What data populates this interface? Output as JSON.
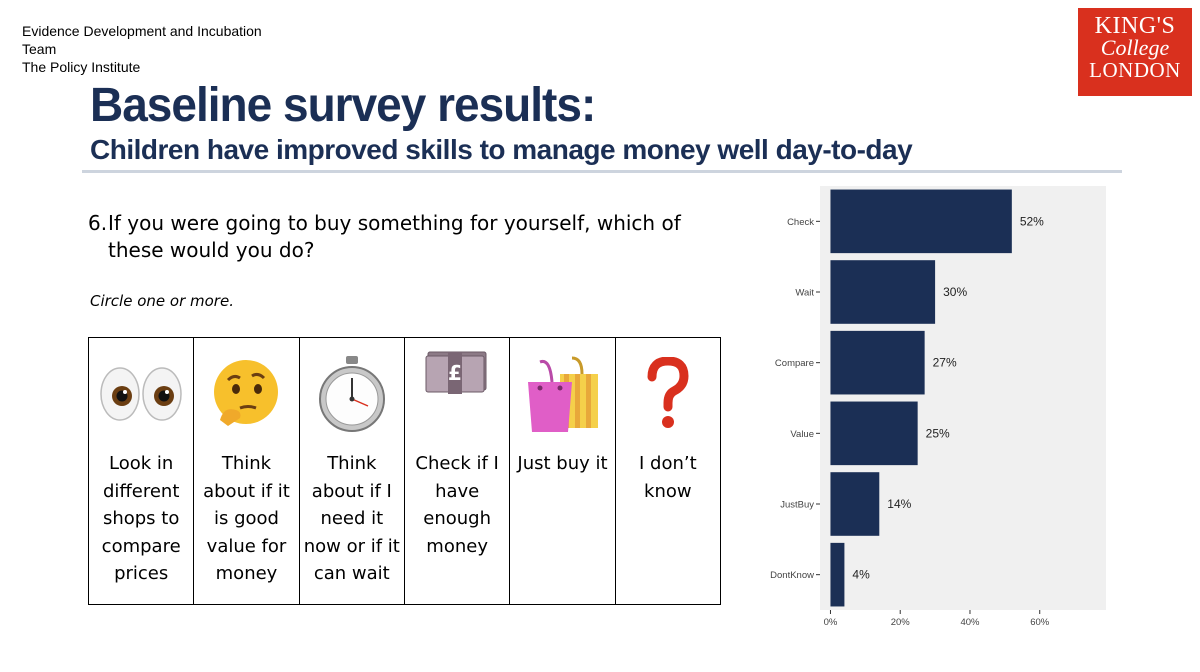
{
  "header": {
    "team_lines": [
      "Evidence Development and Incubation",
      "Team",
      "The Policy Institute"
    ],
    "logo_lines": [
      "KING'S",
      "College",
      "LONDON"
    ],
    "title": "Baseline survey results:",
    "subtitle": "Children have improved skills to manage money well day-to-day"
  },
  "question": {
    "number": "6.",
    "text": "If you were going to buy something for yourself, which of these would you do?",
    "instruction": "Circle one or more."
  },
  "options": [
    {
      "label": "Look in different shops to compare prices",
      "icon": "eyes-icon"
    },
    {
      "label": "Think about if it is good value for money",
      "icon": "thinking-face-icon"
    },
    {
      "label": "Think about if I need it now or if it can wait",
      "icon": "stopwatch-icon"
    },
    {
      "label": "Check if I have enough money",
      "icon": "banknote-icon"
    },
    {
      "label": "Just buy it",
      "icon": "shopping-bags-icon"
    },
    {
      "label": "I don’t know",
      "icon": "question-mark-icon"
    }
  ],
  "colors": {
    "title": "#1b2f55",
    "bar": "#1b2f55",
    "panel": "#f0f0f0",
    "logo_bg": "#d9301e",
    "question_mark": "#d9301e"
  },
  "chart_data": {
    "type": "bar",
    "orientation": "horizontal",
    "categories": [
      "Check",
      "Wait",
      "Compare",
      "Value",
      "JustBuy",
      "DontKnow"
    ],
    "values": [
      52,
      30,
      27,
      25,
      14,
      4
    ],
    "data_labels": [
      "52%",
      "30%",
      "27%",
      "25%",
      "14%",
      "4%"
    ],
    "x_ticks": [
      0,
      20,
      40,
      60
    ],
    "x_tick_labels": [
      "0%",
      "20%",
      "40%",
      "60%"
    ],
    "xlim": [
      -3,
      79
    ],
    "title": "",
    "xlabel": "",
    "ylabel": "",
    "grid": false,
    "legend": "none"
  }
}
